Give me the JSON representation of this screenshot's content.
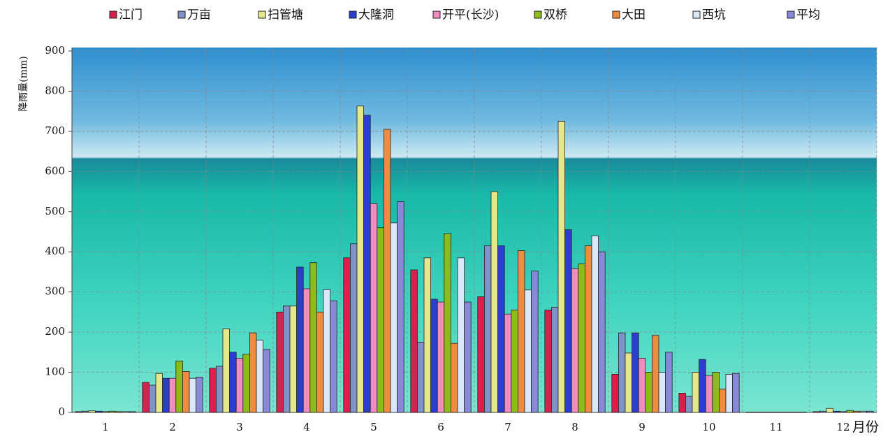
{
  "chart_data": {
    "type": "bar",
    "y_label": "降雨量(mm)",
    "x_label": "月份",
    "categories": [
      "1",
      "2",
      "3",
      "4",
      "5",
      "6",
      "7",
      "8",
      "9",
      "10",
      "11",
      "12"
    ],
    "series": [
      {
        "name": "江门",
        "color": "#d8204f",
        "values": [
          2,
          75,
          110,
          250,
          385,
          355,
          288,
          255,
          95,
          48,
          1,
          2
        ]
      },
      {
        "name": "万亩",
        "color": "#7f93c8",
        "values": [
          3,
          68,
          115,
          265,
          420,
          175,
          415,
          262,
          198,
          40,
          1,
          3
        ]
      },
      {
        "name": "扫管塘",
        "color": "#e6e68a",
        "values": [
          4,
          97,
          208,
          265,
          763,
          385,
          550,
          725,
          148,
          100,
          1,
          10
        ]
      },
      {
        "name": "大隆洞",
        "color": "#2a3fd0",
        "values": [
          3,
          85,
          150,
          362,
          740,
          282,
          415,
          455,
          198,
          132,
          1,
          3
        ]
      },
      {
        "name": "开平(长沙)",
        "color": "#f08cc0",
        "values": [
          2,
          85,
          135,
          308,
          520,
          275,
          245,
          358,
          135,
          92,
          1,
          2
        ]
      },
      {
        "name": "双桥",
        "color": "#8dbb1a",
        "values": [
          3,
          128,
          145,
          373,
          460,
          445,
          255,
          370,
          100,
          100,
          1,
          5
        ]
      },
      {
        "name": "大田",
        "color": "#f08c40",
        "values": [
          2,
          102,
          198,
          250,
          705,
          172,
          403,
          415,
          192,
          58,
          1,
          3
        ]
      },
      {
        "name": "西坑",
        "color": "#d8e8f8",
        "values": [
          2,
          85,
          180,
          306,
          472,
          385,
          305,
          440,
          100,
          95,
          1,
          3
        ]
      },
      {
        "name": "平均",
        "color": "#8888d8",
        "values": [
          2,
          88,
          157,
          278,
          525,
          275,
          352,
          400,
          150,
          97,
          1,
          3
        ]
      }
    ],
    "ylim": [
      0,
      900
    ],
    "yticks": [
      0,
      100,
      200,
      300,
      400,
      500,
      600,
      700,
      800,
      900
    ],
    "grid": true
  }
}
